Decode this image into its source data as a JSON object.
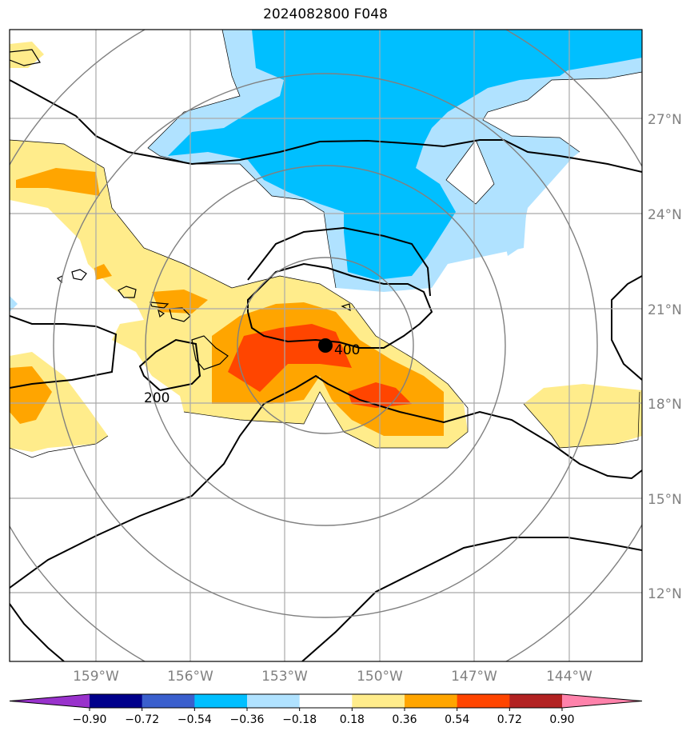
{
  "title": "2024082800 F048",
  "lat_labels": [
    "27°N",
    "24°N",
    "21°N",
    "18°N",
    "15°N",
    "12°N"
  ],
  "lon_labels": [
    "159°W",
    "156°W",
    "153°W",
    "150°W",
    "147°W",
    "144°W"
  ],
  "contour_labels": [
    "200",
    "400"
  ],
  "colorbar": {
    "tick_labels": [
      "−0.90",
      "−0.72",
      "−0.54",
      "−0.36",
      "−0.18",
      "0.18",
      "0.36",
      "0.54",
      "0.72",
      "0.90"
    ],
    "colors": [
      "#9932CC",
      "#00008B",
      "#3A5FCD",
      "#00BFFF",
      "#B0E2FF",
      "#FFFFFF",
      "#FFEC8B",
      "#FFA500",
      "#FF4500",
      "#B22222",
      "#FF82AB"
    ]
  },
  "colors": {
    "light_blue": "#B0E2FF",
    "blue": "#00BFFF",
    "light_yellow": "#FFEC8B",
    "orange": "#FFA500",
    "red_orange": "#FF4500",
    "grid": "#A9A9A9",
    "range_rings": "#808080",
    "contour": "#000000"
  },
  "marker": "storm-center-dot"
}
